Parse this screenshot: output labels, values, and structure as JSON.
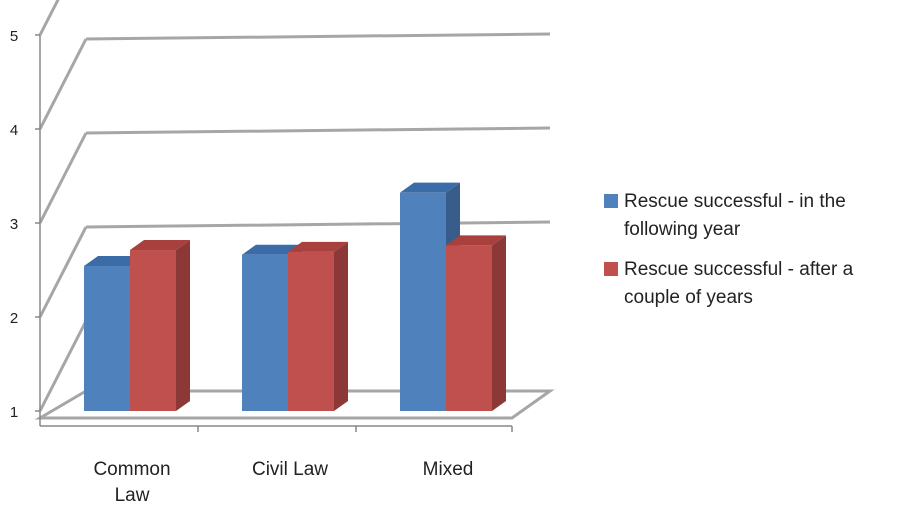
{
  "chart_data": {
    "type": "bar",
    "categories": [
      "Common Law",
      "Civil Law",
      "Mixed"
    ],
    "category_lines": [
      [
        "Common",
        "Law"
      ],
      [
        "Civil Law"
      ],
      [
        "Mixed"
      ]
    ],
    "series": [
      {
        "name": "Rescue successful - in the following year",
        "values": [
          2.5,
          2.62,
          3.28
        ],
        "color": "#4F81BD",
        "dark": "#385D8A",
        "top": "#3C6CA8"
      },
      {
        "name": "Rescue successful - after a couple of years",
        "values": [
          2.67,
          2.65,
          2.72
        ],
        "color": "#C0504D",
        "dark": "#8C3836",
        "top": "#A8413E"
      }
    ],
    "ylim": [
      1,
      5
    ],
    "yticks": [
      "1",
      "2",
      "3",
      "4",
      "5"
    ],
    "grid": true,
    "legend_position": "right",
    "axis_color": "#A6A6A6"
  }
}
